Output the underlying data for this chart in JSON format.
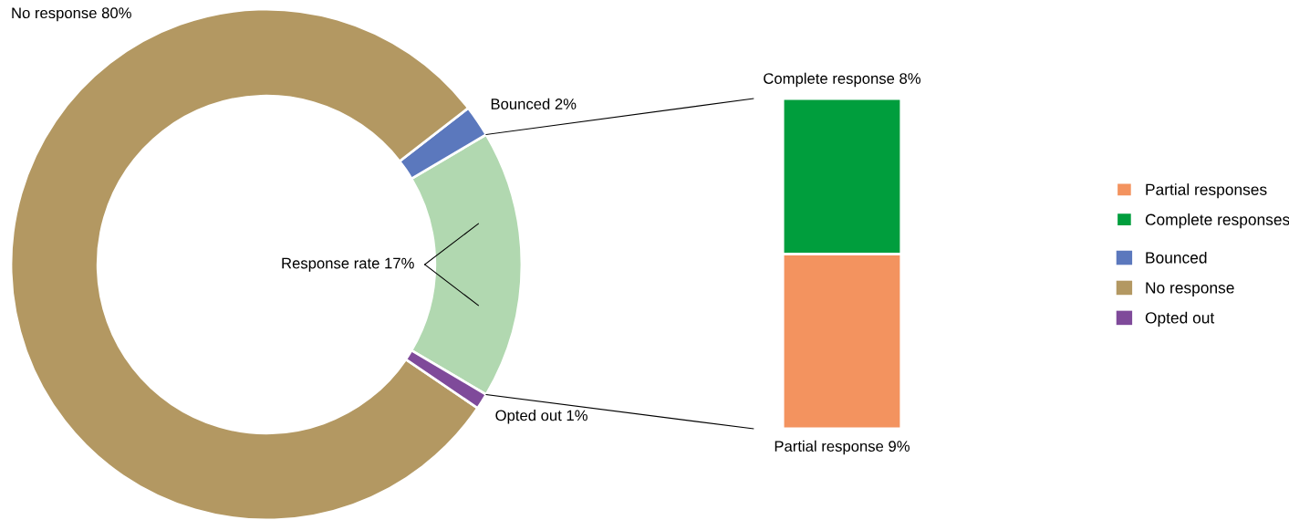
{
  "chart_data": [
    {
      "type": "donut",
      "categories": [
        null,
        "Bounced",
        "No response",
        "Opted out"
      ],
      "values": [
        17,
        2,
        80,
        1
      ],
      "colors": [
        "#b1d8b0",
        "#5b78bd",
        "#b39862",
        "#7f4a9a"
      ],
      "value_labels": [
        "Response rate 17%",
        "Bounced 2%",
        "No response 80%",
        "Opted out 1%"
      ],
      "legend": "right"
    },
    {
      "type": "bar",
      "stacked": true,
      "categories": [
        null
      ],
      "ylim": [
        0,
        17
      ],
      "tick_labels": false,
      "legend": "right",
      "series": [
        {
          "name": "Partial responses",
          "color": "#f3935f",
          "values": [
            9
          ],
          "value_labels": [
            "Partial response 9%"
          ]
        },
        {
          "name": "Complete responses",
          "color": "#009e3d",
          "values": [
            8
          ],
          "value_labels": [
            "Complete response 8%"
          ]
        }
      ]
    }
  ]
}
